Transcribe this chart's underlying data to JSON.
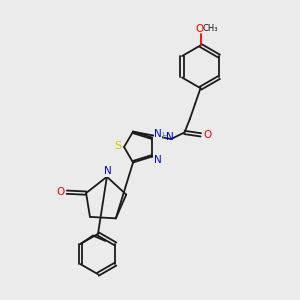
{
  "background_color": "#ebebeb",
  "bond_color": "#1a1a1a",
  "n_color": "#0000ff",
  "o_color": "#ff0000",
  "s_color": "#cccc00",
  "nh_color": "#4a9090",
  "figsize": [
    3.0,
    3.0
  ],
  "dpi": 100,
  "xlim": [
    0,
    10
  ],
  "ylim": [
    0,
    10
  ]
}
